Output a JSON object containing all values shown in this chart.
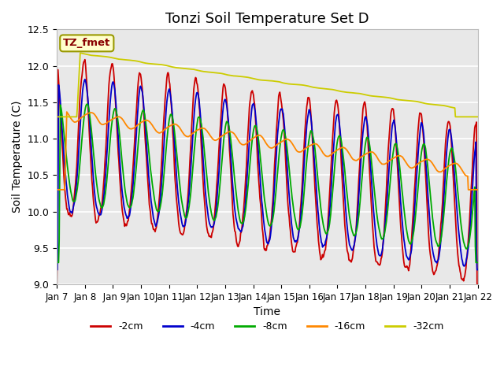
{
  "title": "Tonzi Soil Temperature Set D",
  "xlabel": "Time",
  "ylabel": "Soil Temperature (C)",
  "ylim": [
    9.0,
    12.5
  ],
  "tick_labels": [
    "Jan 7",
    "Jan 8",
    " Jan 9",
    "Jan 10",
    "Jan 11",
    "Jan 12",
    "Jan 13",
    "Jan 14",
    "Jan 15",
    "Jan 16",
    "Jan 17",
    "Jan 18",
    "Jan 19",
    "Jan 20",
    "Jan 21",
    "Jan 22"
  ],
  "legend_labels": [
    "-2cm",
    "-4cm",
    "-8cm",
    "-16cm",
    "-32cm"
  ],
  "legend_colors": [
    "#cc0000",
    "#0000cc",
    "#00aa00",
    "#ff8800",
    "#cccc00"
  ],
  "annotation_text": "TZ_fmet",
  "annotation_color": "#880000",
  "annotation_bg": "#ffffcc",
  "annotation_border": "#999900",
  "background_color": "#e8e8e8",
  "grid_color": "#ffffff",
  "title_fontsize": 13,
  "axis_fontsize": 10,
  "tick_fontsize": 8.5
}
